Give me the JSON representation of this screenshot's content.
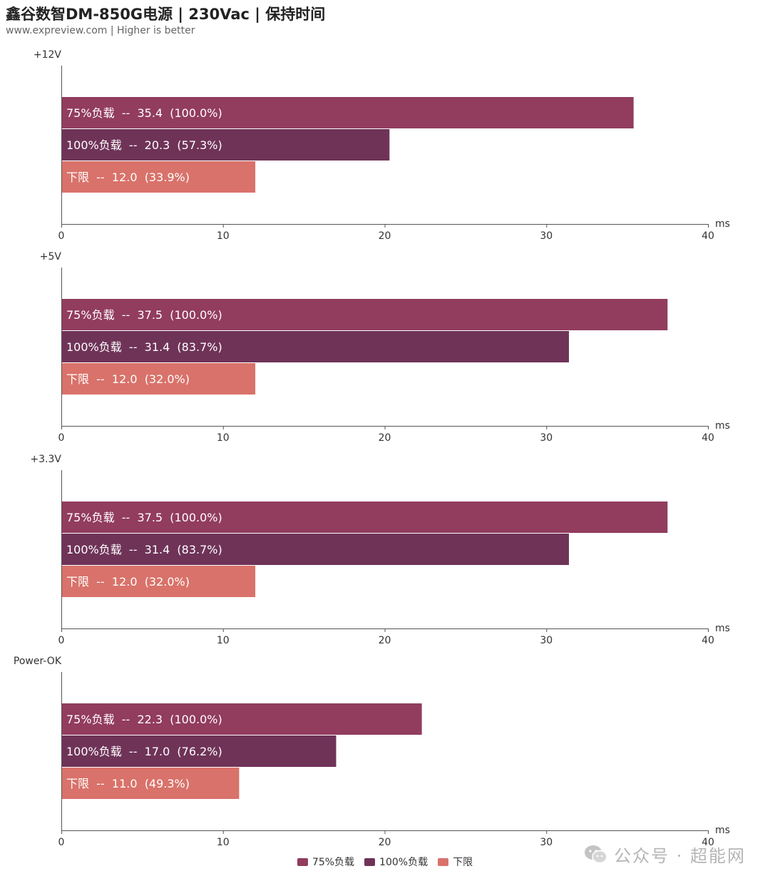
{
  "header": {
    "title": "鑫谷数智DM-850G电源 | 230Vac | 保持时间",
    "subtitle": "www.expreview.com | Higher is better"
  },
  "colors": {
    "series_75": "#923c5e",
    "series_100": "#6f3358",
    "series_min": "#d9726a",
    "axis": "#555555",
    "label_text": "#ffffff"
  },
  "chart_data": [
    {
      "type": "bar",
      "orientation": "horizontal",
      "title": "+12V",
      "xlabel": "ms",
      "xlim": [
        0,
        40
      ],
      "xticks": [
        "0",
        "10",
        "20",
        "30",
        "40"
      ],
      "bars": [
        {
          "series": "75%负载",
          "value": 35.4,
          "pct": "100.0%"
        },
        {
          "series": "100%负载",
          "value": 20.3,
          "pct": "57.3%"
        },
        {
          "series": "下限",
          "value": 12.0,
          "pct": "33.9%"
        }
      ]
    },
    {
      "type": "bar",
      "orientation": "horizontal",
      "title": "+5V",
      "xlabel": "ms",
      "xlim": [
        0,
        40
      ],
      "xticks": [
        "0",
        "10",
        "20",
        "30",
        "40"
      ],
      "bars": [
        {
          "series": "75%负载",
          "value": 37.5,
          "pct": "100.0%"
        },
        {
          "series": "100%负载",
          "value": 31.4,
          "pct": "83.7%"
        },
        {
          "series": "下限",
          "value": 12.0,
          "pct": "32.0%"
        }
      ]
    },
    {
      "type": "bar",
      "orientation": "horizontal",
      "title": "+3.3V",
      "xlabel": "ms",
      "xlim": [
        0,
        40
      ],
      "xticks": [
        "0",
        "10",
        "20",
        "30",
        "40"
      ],
      "bars": [
        {
          "series": "75%负载",
          "value": 37.5,
          "pct": "100.0%"
        },
        {
          "series": "100%负载",
          "value": 31.4,
          "pct": "83.7%"
        },
        {
          "series": "下限",
          "value": 12.0,
          "pct": "32.0%"
        }
      ]
    },
    {
      "type": "bar",
      "orientation": "horizontal",
      "title": "Power-OK",
      "xlabel": "ms",
      "xlim": [
        0,
        40
      ],
      "xticks": [
        "0",
        "10",
        "20",
        "30",
        "40"
      ],
      "bars": [
        {
          "series": "75%负载",
          "value": 22.3,
          "pct": "100.0%"
        },
        {
          "series": "100%负载",
          "value": 17.0,
          "pct": "76.2%"
        },
        {
          "series": "下限",
          "value": 11.0,
          "pct": "49.3%"
        }
      ]
    }
  ],
  "legend": {
    "placement": "bottom-center",
    "items": [
      {
        "label": "75%负载",
        "color_key": "series_75"
      },
      {
        "label": "100%负载",
        "color_key": "series_100"
      },
      {
        "label": "下限",
        "color_key": "series_min"
      }
    ]
  },
  "watermark": {
    "text": "公众号 · 超能网",
    "icon": "wechat-icon"
  }
}
